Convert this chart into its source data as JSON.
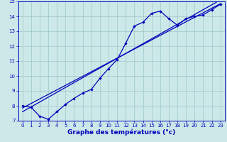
{
  "xlabel": "Graphe des températures (°c)",
  "bg_color": "#cce8e8",
  "line_color": "#0000bb",
  "xlim": [
    -0.5,
    23.5
  ],
  "ylim": [
    7,
    15
  ],
  "xticks": [
    0,
    1,
    2,
    3,
    4,
    5,
    6,
    7,
    8,
    9,
    10,
    11,
    12,
    13,
    14,
    15,
    16,
    17,
    18,
    19,
    20,
    21,
    22,
    23
  ],
  "yticks": [
    7,
    8,
    9,
    10,
    11,
    12,
    13,
    14,
    15
  ],
  "temp_line_x": [
    0,
    1,
    2,
    3,
    4,
    5,
    6,
    7,
    8,
    9,
    10,
    11,
    12,
    13,
    14,
    15,
    16,
    17,
    18,
    19,
    20,
    21,
    22,
    23
  ],
  "temp_line_y": [
    8.0,
    7.9,
    7.3,
    7.1,
    7.6,
    8.1,
    8.5,
    8.85,
    9.1,
    9.85,
    10.5,
    11.1,
    12.2,
    13.35,
    13.6,
    14.2,
    14.35,
    13.85,
    13.4,
    13.85,
    14.0,
    14.1,
    14.45,
    14.8
  ],
  "line1_x": [
    0,
    23
  ],
  "line1_y": [
    7.85,
    14.85
  ],
  "line2_x": [
    0,
    23
  ],
  "line2_y": [
    7.6,
    15.1
  ],
  "grid_color": "#9ec8c8",
  "tick_fontsize": 5,
  "xlabel_fontsize": 6.5,
  "xlabel_color": "#0000bb",
  "xlabel_fontweight": "bold"
}
